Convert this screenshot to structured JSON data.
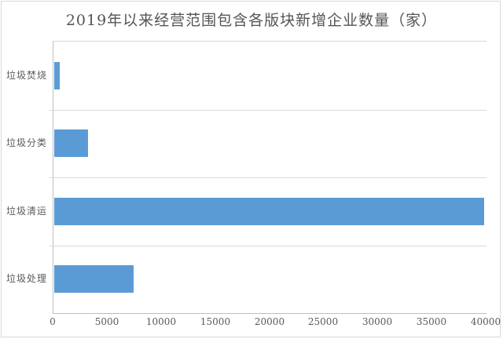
{
  "chart_data": {
    "type": "bar",
    "orientation": "horizontal",
    "title": "2019年以来经营范围包含各版块新增企业数量（家）",
    "categories": [
      "垃圾焚烧",
      "垃圾分类",
      "垃圾清运",
      "垃圾处理"
    ],
    "values": [
      500,
      3100,
      39700,
      7300
    ],
    "xlabel": "",
    "ylabel": "",
    "xlim": [
      0,
      40000
    ],
    "xticks": [
      0,
      5000,
      10000,
      15000,
      20000,
      25000,
      30000,
      35000,
      40000
    ],
    "grid": "category-separators-only",
    "legend": "none",
    "bar_color": "#5b9bd5",
    "gridline_color": "#d9d9d9",
    "axis_color": "#bfbfbf",
    "text_color": "#595959"
  }
}
